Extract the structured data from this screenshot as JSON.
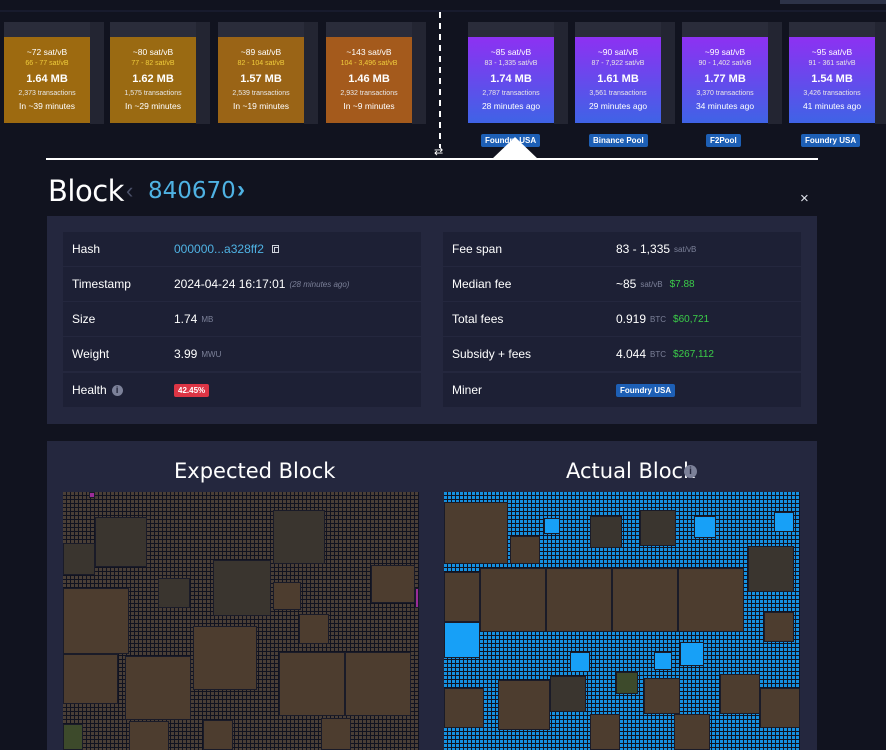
{
  "mempool_blocks": [
    {
      "fee": "~72 sat/vB",
      "span": "66 - 77 sat/vB",
      "size": "1.64 MB",
      "txs": "2,373 transactions",
      "time": "In ~39 minutes"
    },
    {
      "fee": "~80 sat/vB",
      "span": "77 - 82 sat/vB",
      "size": "1.62 MB",
      "txs": "1,575 transactions",
      "time": "In ~29 minutes"
    },
    {
      "fee": "~89 sat/vB",
      "span": "82 - 104 sat/vB",
      "size": "1.57 MB",
      "txs": "2,539 transactions",
      "time": "In ~19 minutes"
    },
    {
      "fee": "~143 sat/vB",
      "span": "104 - 3,496 sat/vB",
      "size": "1.46 MB",
      "txs": "2,932 transactions",
      "time": "In ~9 minutes"
    }
  ],
  "mined_blocks": [
    {
      "fee": "~85 sat/vB",
      "span": "83 - 1,335 sat/vB",
      "size": "1.74 MB",
      "txs": "2,787 transactions",
      "time": "28 minutes ago",
      "pool": "Foundry USA"
    },
    {
      "fee": "~90 sat/vB",
      "span": "87 - 7,922 sat/vB",
      "size": "1.61 MB",
      "txs": "3,561 transactions",
      "time": "29 minutes ago",
      "pool": "Binance Pool"
    },
    {
      "fee": "~99 sat/vB",
      "span": "90 - 1,402 sat/vB",
      "size": "1.77 MB",
      "txs": "3,370 transactions",
      "time": "34 minutes ago",
      "pool": "F2Pool"
    },
    {
      "fee": "~95 sat/vB",
      "span": "91 - 361 sat/vB",
      "size": "1.54 MB",
      "txs": "3,426 transactions",
      "time": "41 minutes ago",
      "pool": "Foundry USA"
    }
  ],
  "header": {
    "title": "Block",
    "prev_arrow": "‹",
    "height": "840670",
    "next_arrow": "›",
    "close": "×",
    "swap": "⇄"
  },
  "details": {
    "hash": {
      "label": "Hash",
      "value": "000000...a328ff2"
    },
    "timestamp": {
      "label": "Timestamp",
      "value": "2024-04-24 16:17:01",
      "relative": "(28 minutes ago)"
    },
    "size": {
      "label": "Size",
      "value": "1.74",
      "unit": "MB"
    },
    "weight": {
      "label": "Weight",
      "value": "3.99",
      "unit": "MWU"
    },
    "health": {
      "label": "Health",
      "info": "i",
      "value": "42.45%"
    },
    "fee_span": {
      "label": "Fee span",
      "value": "83 - 1,335",
      "unit": "sat/vB"
    },
    "median_fee": {
      "label": "Median fee",
      "value": "~85",
      "unit": "sat/vB",
      "usd": "$7.88"
    },
    "total_fees": {
      "label": "Total fees",
      "value": "0.919",
      "unit": "BTC",
      "usd": "$60,721"
    },
    "subsidy_fees": {
      "label": "Subsidy + fees",
      "value": "4.044",
      "unit": "BTC",
      "usd": "$267,112"
    },
    "miner": {
      "label": "Miner",
      "value": "Foundry USA"
    }
  },
  "visualization": {
    "expected_title": "Expected Block",
    "actual_title": "Actual Block",
    "actual_info": "i"
  },
  "colors": {
    "background": "#11131f",
    "panel": "#24273e",
    "row": "#1d2035",
    "accent_link": "#4fb2e3",
    "usd_green": "#3bcc49",
    "health_red": "#dc3545",
    "pool_blue": "#1d5fb5",
    "mempool_block": "#9a6b12",
    "mined_block_top": "#8d31f2",
    "mined_block_bottom": "#3f63e6"
  }
}
